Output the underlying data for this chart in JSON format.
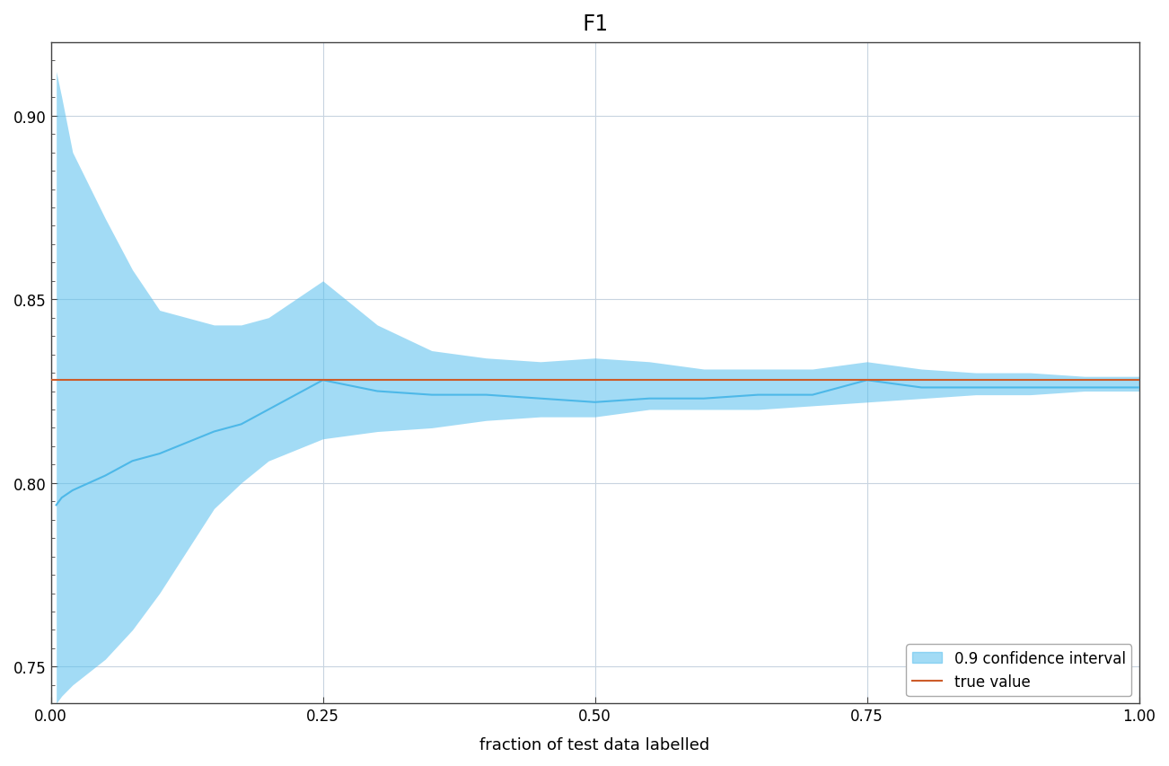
{
  "title": "F1",
  "xlabel": "fraction of test data labelled",
  "ylabel": "",
  "xlim": [
    0.0,
    1.0
  ],
  "ylim": [
    0.74,
    0.92
  ],
  "true_value": 0.828,
  "true_value_color": "#cd5c2a",
  "line_color": "#4db8e8",
  "fill_color": "#56bfee",
  "fill_alpha": 0.55,
  "background_color": "#ffffff",
  "grid_color": "#c8d4e0",
  "legend_ci_label": "0.9 confidence interval",
  "legend_true_label": "true value",
  "x": [
    0.005,
    0.01,
    0.02,
    0.05,
    0.075,
    0.1,
    0.15,
    0.175,
    0.2,
    0.25,
    0.3,
    0.35,
    0.4,
    0.45,
    0.5,
    0.55,
    0.6,
    0.65,
    0.7,
    0.75,
    0.8,
    0.85,
    0.9,
    0.95,
    1.0
  ],
  "mean": [
    0.794,
    0.796,
    0.798,
    0.802,
    0.806,
    0.808,
    0.814,
    0.816,
    0.82,
    0.828,
    0.825,
    0.824,
    0.824,
    0.823,
    0.822,
    0.823,
    0.823,
    0.824,
    0.824,
    0.828,
    0.826,
    0.826,
    0.826,
    0.826,
    0.826
  ],
  "upper": [
    0.912,
    0.905,
    0.89,
    0.872,
    0.858,
    0.847,
    0.843,
    0.843,
    0.845,
    0.855,
    0.843,
    0.836,
    0.834,
    0.833,
    0.834,
    0.833,
    0.831,
    0.831,
    0.831,
    0.833,
    0.831,
    0.83,
    0.83,
    0.829,
    0.829
  ],
  "lower": [
    0.74,
    0.742,
    0.745,
    0.752,
    0.76,
    0.77,
    0.793,
    0.8,
    0.806,
    0.812,
    0.814,
    0.815,
    0.817,
    0.818,
    0.818,
    0.82,
    0.82,
    0.82,
    0.821,
    0.822,
    0.823,
    0.824,
    0.824,
    0.825,
    0.825
  ],
  "title_fontsize": 17,
  "label_fontsize": 13,
  "tick_fontsize": 12,
  "legend_fontsize": 12,
  "yticks": [
    0.75,
    0.8,
    0.85,
    0.9
  ],
  "xticks": [
    0.0,
    0.25,
    0.5,
    0.75,
    1.0
  ],
  "minor_ytick_step": 0.005,
  "spine_color": "#444444"
}
